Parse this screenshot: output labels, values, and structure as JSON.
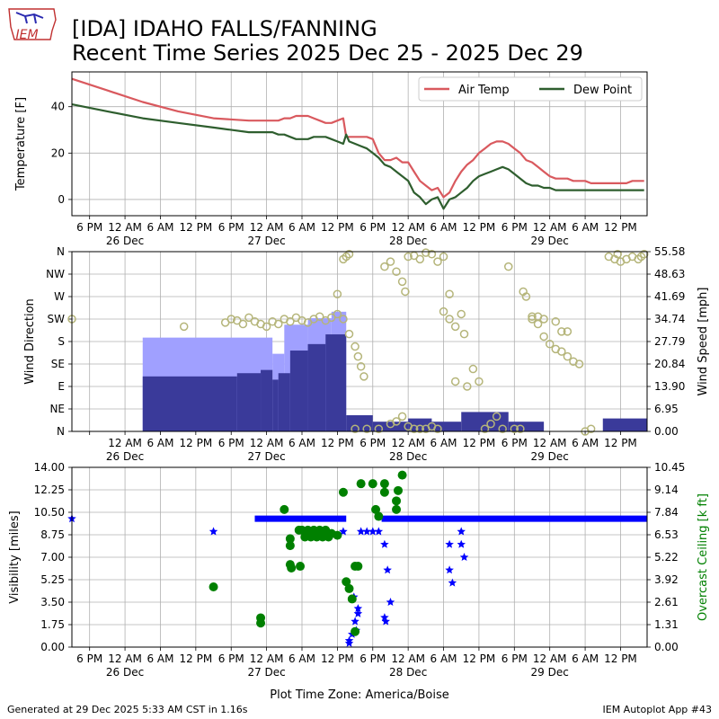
{
  "header": {
    "logo_text": "IEM",
    "title": "[IDA] IDAHO FALLS/FANNING",
    "subtitle": "Recent Time Series 2025 Dec 25 - 2025 Dec 29"
  },
  "footer": {
    "generated": "Generated at 29 Dec 2025 5:33 AM CST in 1.16s",
    "app": "IEM Autoplot App #43"
  },
  "colors": {
    "air_temp": "#d9595e",
    "dew_point": "#2e5e2e",
    "gust_bar": "#a0a0ff",
    "speed_bar": "#3a3a9a",
    "direction": "#b5b57a",
    "visibility": "#0000ff",
    "ceiling": "#008000",
    "grid": "#b0b0b0"
  },
  "chart_data": [
    {
      "type": "line",
      "panel": "temperature",
      "ylabel": "Temperature [F]",
      "ylim": [
        -7,
        55
      ],
      "yticks": [
        0,
        20,
        40
      ],
      "xlim_hours": [
        0,
        97.5
      ],
      "legend_placement": "top-right",
      "time_ticks": {
        "hours": [
          3,
          9,
          15,
          21,
          27,
          33,
          39,
          45,
          51,
          57,
          63,
          69,
          75,
          81,
          87,
          93
        ],
        "labels": [
          "6 PM",
          "12 AM",
          "6 AM",
          "12 PM",
          "6 PM",
          "12 AM",
          "6 AM",
          "12 PM",
          "6 PM",
          "12 AM",
          "6 AM",
          "12 PM",
          "6 PM",
          "12 AM",
          "6 AM",
          "12 PM"
        ],
        "date_labels": {
          "9": "26 Dec",
          "33": "27 Dec",
          "57": "28 Dec",
          "81": "29 Dec"
        }
      },
      "series": [
        {
          "name": "Air Temp",
          "x": [
            0,
            6,
            12,
            18,
            24,
            30,
            34,
            35,
            36,
            37,
            38,
            40,
            41,
            42,
            43,
            44,
            45,
            46,
            46.5,
            47,
            48,
            49,
            50,
            51,
            52,
            53,
            54,
            55,
            56,
            57,
            58,
            59,
            60,
            61,
            62,
            63,
            64,
            65,
            66,
            67,
            68,
            69,
            70,
            71,
            72,
            73,
            74,
            75,
            76,
            77,
            78,
            79,
            80,
            81,
            82,
            83,
            84,
            85,
            86,
            87,
            88,
            89,
            90,
            91,
            92,
            93,
            94,
            95,
            96,
            97
          ],
          "values": [
            52,
            47,
            42,
            38,
            35,
            34,
            34,
            34,
            35,
            35,
            36,
            36,
            35,
            34,
            33,
            33,
            34,
            35,
            27,
            27,
            27,
            27,
            27,
            26,
            20,
            17,
            17,
            18,
            16,
            16,
            12,
            8,
            6,
            4,
            5,
            1,
            3,
            8,
            12,
            15,
            17,
            20,
            22,
            24,
            25,
            25,
            24,
            22,
            20,
            17,
            16,
            14,
            12,
            10,
            9,
            9,
            9,
            8,
            8,
            8,
            7,
            7,
            7,
            7,
            7,
            7,
            7,
            8,
            8,
            8
          ],
          "color_key": "air_temp"
        },
        {
          "name": "Dew Point",
          "x": [
            0,
            6,
            12,
            18,
            24,
            30,
            34,
            35,
            36,
            37,
            38,
            40,
            41,
            42,
            43,
            44,
            45,
            46,
            46.5,
            47,
            48,
            49,
            50,
            51,
            52,
            53,
            54,
            55,
            56,
            57,
            58,
            59,
            60,
            61,
            62,
            63,
            64,
            65,
            66,
            67,
            68,
            69,
            70,
            71,
            72,
            73,
            74,
            75,
            76,
            77,
            78,
            79,
            80,
            81,
            82,
            83,
            84,
            85,
            86,
            87,
            88,
            89,
            90,
            91,
            92,
            93,
            94,
            95,
            96,
            97
          ],
          "values": [
            41,
            38,
            35,
            33,
            31,
            29,
            29,
            28,
            28,
            27,
            26,
            26,
            27,
            27,
            27,
            26,
            25,
            24,
            28,
            25,
            24,
            23,
            22,
            20,
            18,
            15,
            14,
            12,
            10,
            8,
            3,
            1,
            -2,
            0,
            1,
            -4,
            0,
            1,
            3,
            5,
            8,
            10,
            11,
            12,
            13,
            14,
            13,
            11,
            9,
            7,
            6,
            6,
            5,
            5,
            4,
            4,
            4,
            4,
            4,
            4,
            4,
            4,
            4,
            4,
            4,
            4,
            4,
            4,
            4,
            4
          ],
          "color_key": "dew_point"
        }
      ]
    },
    {
      "type": "bar",
      "panel": "wind",
      "ylabel": "Wind Direction",
      "ylabel_right": "Wind Speed [mph]",
      "direction_ticks": [
        "N",
        "NE",
        "E",
        "SE",
        "S",
        "SW",
        "W",
        "NW",
        "N"
      ],
      "direction_lim": [
        0,
        360
      ],
      "speed_lim": [
        0,
        55.58
      ],
      "speed_ticks": [
        "0.00",
        "6.95",
        "13.90",
        "20.84",
        "27.79",
        "34.74",
        "41.69",
        "48.63",
        "55.58"
      ],
      "date_labels": [
        "26 Dec",
        "27 Dec",
        "28 Dec",
        "29 Dec"
      ],
      "gust_segments": [
        {
          "start": 12,
          "end": 34,
          "value": 29
        },
        {
          "start": 34,
          "end": 36,
          "value": 24
        },
        {
          "start": 36,
          "end": 40,
          "value": 33
        },
        {
          "start": 40,
          "end": 44,
          "value": 35
        },
        {
          "start": 44,
          "end": 46.5,
          "value": 37
        }
      ],
      "speed_segments": [
        {
          "start": 12,
          "end": 28,
          "value": 17
        },
        {
          "start": 28,
          "end": 32,
          "value": 18
        },
        {
          "start": 32,
          "end": 34,
          "value": 19
        },
        {
          "start": 34,
          "end": 35,
          "value": 16
        },
        {
          "start": 35,
          "end": 37,
          "value": 18
        },
        {
          "start": 37,
          "end": 40,
          "value": 25
        },
        {
          "start": 40,
          "end": 43,
          "value": 27
        },
        {
          "start": 43,
          "end": 46.5,
          "value": 30
        },
        {
          "start": 46.5,
          "end": 51,
          "value": 5
        },
        {
          "start": 51,
          "end": 57,
          "value": 3
        },
        {
          "start": 57,
          "end": 61,
          "value": 4
        },
        {
          "start": 61,
          "end": 66,
          "value": 3
        },
        {
          "start": 66,
          "end": 74,
          "value": 6
        },
        {
          "start": 74,
          "end": 80,
          "value": 3
        },
        {
          "start": 90,
          "end": 97.5,
          "value": 4
        }
      ],
      "direction_points": [
        {
          "x": 0,
          "dir": 225
        },
        {
          "x": 19,
          "dir": 210
        },
        {
          "x": 26,
          "dir": 218
        },
        {
          "x": 27,
          "dir": 225
        },
        {
          "x": 28,
          "dir": 222
        },
        {
          "x": 29,
          "dir": 215
        },
        {
          "x": 30,
          "dir": 228
        },
        {
          "x": 31,
          "dir": 220
        },
        {
          "x": 32,
          "dir": 215
        },
        {
          "x": 33,
          "dir": 210
        },
        {
          "x": 34,
          "dir": 220
        },
        {
          "x": 35,
          "dir": 215
        },
        {
          "x": 36,
          "dir": 225
        },
        {
          "x": 37,
          "dir": 220
        },
        {
          "x": 38,
          "dir": 228
        },
        {
          "x": 39,
          "dir": 222
        },
        {
          "x": 40,
          "dir": 218
        },
        {
          "x": 41,
          "dir": 225
        },
        {
          "x": 42,
          "dir": 230
        },
        {
          "x": 43,
          "dir": 222
        },
        {
          "x": 44,
          "dir": 228
        },
        {
          "x": 45,
          "dir": 235
        },
        {
          "x": 46,
          "dir": 225
        },
        {
          "x": 46,
          "dir": 345
        },
        {
          "x": 46.5,
          "dir": 350
        },
        {
          "x": 47,
          "dir": 355
        },
        {
          "x": 45,
          "dir": 275
        },
        {
          "x": 47,
          "dir": 195
        },
        {
          "x": 48,
          "dir": 170
        },
        {
          "x": 48.5,
          "dir": 150
        },
        {
          "x": 49,
          "dir": 130
        },
        {
          "x": 49.5,
          "dir": 110
        },
        {
          "x": 48,
          "dir": 5
        },
        {
          "x": 50,
          "dir": 5
        },
        {
          "x": 52,
          "dir": 5
        },
        {
          "x": 54,
          "dir": 15
        },
        {
          "x": 53,
          "dir": 330
        },
        {
          "x": 54,
          "dir": 340
        },
        {
          "x": 55,
          "dir": 320
        },
        {
          "x": 56,
          "dir": 300
        },
        {
          "x": 56.5,
          "dir": 280
        },
        {
          "x": 57,
          "dir": 350
        },
        {
          "x": 58,
          "dir": 352
        },
        {
          "x": 59,
          "dir": 345
        },
        {
          "x": 60,
          "dir": 358
        },
        {
          "x": 61,
          "dir": 355
        },
        {
          "x": 62,
          "dir": 340
        },
        {
          "x": 63,
          "dir": 350
        },
        {
          "x": 55,
          "dir": 20
        },
        {
          "x": 56,
          "dir": 30
        },
        {
          "x": 57,
          "dir": 10
        },
        {
          "x": 58,
          "dir": 5
        },
        {
          "x": 59,
          "dir": 5
        },
        {
          "x": 60,
          "dir": 5
        },
        {
          "x": 61,
          "dir": 10
        },
        {
          "x": 62,
          "dir": 5
        },
        {
          "x": 64,
          "dir": 275
        },
        {
          "x": 63,
          "dir": 240
        },
        {
          "x": 64,
          "dir": 225
        },
        {
          "x": 65,
          "dir": 210
        },
        {
          "x": 66,
          "dir": 235
        },
        {
          "x": 66.5,
          "dir": 195
        },
        {
          "x": 65,
          "dir": 100
        },
        {
          "x": 67,
          "dir": 90
        },
        {
          "x": 68,
          "dir": 125
        },
        {
          "x": 69,
          "dir": 100
        },
        {
          "x": 70,
          "dir": 5
        },
        {
          "x": 71,
          "dir": 15
        },
        {
          "x": 72,
          "dir": 30
        },
        {
          "x": 73,
          "dir": 5
        },
        {
          "x": 74,
          "dir": 330
        },
        {
          "x": 75,
          "dir": 5
        },
        {
          "x": 76,
          "dir": 5
        },
        {
          "x": 76.5,
          "dir": 280
        },
        {
          "x": 77,
          "dir": 270
        },
        {
          "x": 78,
          "dir": 230
        },
        {
          "x": 79,
          "dir": 215
        },
        {
          "x": 80,
          "dir": 190
        },
        {
          "x": 81,
          "dir": 175
        },
        {
          "x": 82,
          "dir": 165
        },
        {
          "x": 83,
          "dir": 160
        },
        {
          "x": 84,
          "dir": 150
        },
        {
          "x": 85,
          "dir": 140
        },
        {
          "x": 86,
          "dir": 135
        },
        {
          "x": 84,
          "dir": 200
        },
        {
          "x": 80,
          "dir": 225
        },
        {
          "x": 79,
          "dir": 230
        },
        {
          "x": 78,
          "dir": 225
        },
        {
          "x": 82,
          "dir": 220
        },
        {
          "x": 83,
          "dir": 200
        },
        {
          "x": 87,
          "dir": 0
        },
        {
          "x": 88,
          "dir": 5
        },
        {
          "x": 91,
          "dir": 350
        },
        {
          "x": 92,
          "dir": 345
        },
        {
          "x": 93,
          "dir": 340
        },
        {
          "x": 94,
          "dir": 345
        },
        {
          "x": 95,
          "dir": 350
        },
        {
          "x": 96,
          "dir": 345
        },
        {
          "x": 97,
          "dir": 355
        },
        {
          "x": 92.5,
          "dir": 355
        },
        {
          "x": 96.5,
          "dir": 350
        }
      ]
    },
    {
      "type": "scatter",
      "panel": "visibility_ceiling",
      "ylabel": "Visibility [miles]",
      "ylabel_right": "Overcast Ceiling [k ft]",
      "xlabel": "Plot Time Zone: America/Boise",
      "vis_lim": [
        0,
        14
      ],
      "vis_ticks": [
        "0.00",
        "1.75",
        "3.50",
        "5.25",
        "7.00",
        "8.75",
        "10.50",
        "12.25",
        "14.00"
      ],
      "ceil_lim": [
        0,
        10.45
      ],
      "ceil_ticks": [
        "0.00",
        "1.31",
        "2.61",
        "3.92",
        "5.22",
        "6.53",
        "7.84",
        "9.14",
        "10.45"
      ],
      "visibility_lines": [
        {
          "start": 31,
          "end": 46.5,
          "value": 10
        },
        {
          "start": 52.5,
          "end": 97.5,
          "value": 10
        }
      ],
      "visibility_points": [
        {
          "x": 0,
          "y": 10
        },
        {
          "x": 24,
          "y": 9
        },
        {
          "x": 46,
          "y": 9
        },
        {
          "x": 47,
          "y": 0.5
        },
        {
          "x": 47.5,
          "y": 1
        },
        {
          "x": 48,
          "y": 2
        },
        {
          "x": 48.5,
          "y": 3
        },
        {
          "x": 47.8,
          "y": 3.9
        },
        {
          "x": 47,
          "y": 0.3
        },
        {
          "x": 48.2,
          "y": 1.3
        },
        {
          "x": 48.5,
          "y": 2.6
        },
        {
          "x": 49,
          "y": 9
        },
        {
          "x": 50,
          "y": 9
        },
        {
          "x": 51,
          "y": 9
        },
        {
          "x": 52,
          "y": 9
        },
        {
          "x": 53,
          "y": 8
        },
        {
          "x": 53.5,
          "y": 6
        },
        {
          "x": 54,
          "y": 3.5
        },
        {
          "x": 53,
          "y": 2.3
        },
        {
          "x": 53.2,
          "y": 2
        },
        {
          "x": 64,
          "y": 8
        },
        {
          "x": 64,
          "y": 6
        },
        {
          "x": 64.5,
          "y": 5
        },
        {
          "x": 66,
          "y": 9
        },
        {
          "x": 66,
          "y": 8
        },
        {
          "x": 66.5,
          "y": 7
        }
      ],
      "ceiling_points": [
        {
          "x": 24,
          "y": 3.5
        },
        {
          "x": 32,
          "y": 1.7
        },
        {
          "x": 32,
          "y": 1.4
        },
        {
          "x": 36,
          "y": 8
        },
        {
          "x": 37,
          "y": 6.3
        },
        {
          "x": 37,
          "y": 5.9
        },
        {
          "x": 37,
          "y": 4.8
        },
        {
          "x": 37.2,
          "y": 4.6
        },
        {
          "x": 38.5,
          "y": 6.8
        },
        {
          "x": 38.7,
          "y": 4.7
        },
        {
          "x": 39,
          "y": 6.8
        },
        {
          "x": 40,
          "y": 6.8
        },
        {
          "x": 41,
          "y": 6.8
        },
        {
          "x": 42,
          "y": 6.8
        },
        {
          "x": 43,
          "y": 6.8
        },
        {
          "x": 39.5,
          "y": 6.4
        },
        {
          "x": 40.5,
          "y": 6.4
        },
        {
          "x": 41.5,
          "y": 6.4
        },
        {
          "x": 42.5,
          "y": 6.4
        },
        {
          "x": 43.5,
          "y": 6.4
        },
        {
          "x": 44,
          "y": 6.6
        },
        {
          "x": 45,
          "y": 6.5
        },
        {
          "x": 46,
          "y": 9
        },
        {
          "x": 46.5,
          "y": 3.8
        },
        {
          "x": 47,
          "y": 3.4
        },
        {
          "x": 47.5,
          "y": 2.8
        },
        {
          "x": 48,
          "y": 4.7
        },
        {
          "x": 48.5,
          "y": 4.7
        },
        {
          "x": 48,
          "y": 0.9
        },
        {
          "x": 49,
          "y": 9.5
        },
        {
          "x": 51,
          "y": 9.5
        },
        {
          "x": 51.5,
          "y": 8
        },
        {
          "x": 52,
          "y": 7.6
        },
        {
          "x": 53,
          "y": 9.5
        },
        {
          "x": 55,
          "y": 8.5
        },
        {
          "x": 55,
          "y": 8
        },
        {
          "x": 55.3,
          "y": 9.1
        },
        {
          "x": 56,
          "y": 10
        },
        {
          "x": 53,
          "y": 9
        }
      ]
    }
  ]
}
